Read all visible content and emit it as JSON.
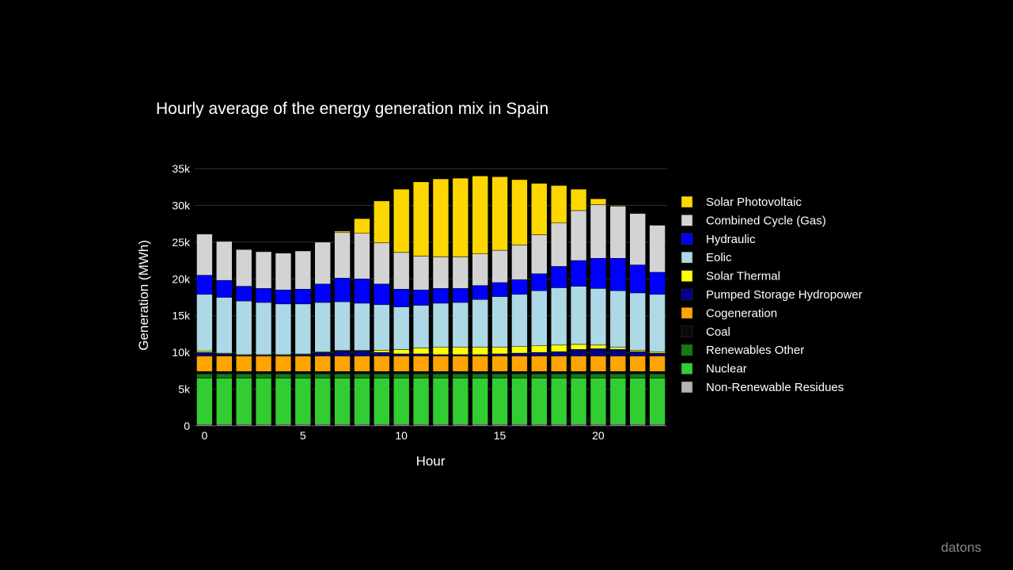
{
  "watermark": "datons",
  "chart_data": {
    "type": "bar",
    "stacked": true,
    "title": "Hourly average of the energy generation mix in Spain",
    "xlabel": "Hour",
    "ylabel": "Generation (MWh)",
    "xlim": [
      -0.5,
      23.5
    ],
    "ylim": [
      0,
      35000
    ],
    "x_tick_values": [
      0,
      5,
      10,
      15,
      20
    ],
    "x_tick_labels": [
      "0",
      "5",
      "10",
      "15",
      "20"
    ],
    "y_tick_values": [
      0,
      5000,
      10000,
      15000,
      20000,
      25000,
      30000,
      35000
    ],
    "y_tick_labels": [
      "0",
      "5k",
      "10k",
      "15k",
      "20k",
      "25k",
      "30k",
      "35k"
    ],
    "grid": true,
    "legend_position": "right",
    "x": [
      0,
      1,
      2,
      3,
      4,
      5,
      6,
      7,
      8,
      9,
      10,
      11,
      12,
      13,
      14,
      15,
      16,
      17,
      18,
      19,
      20,
      21,
      22,
      23
    ],
    "series": [
      {
        "name": "Non-Renewable Residues",
        "color": "#b4b4b4",
        "values": [
          200,
          200,
          200,
          200,
          200,
          200,
          200,
          200,
          200,
          200,
          200,
          200,
          200,
          200,
          200,
          200,
          200,
          200,
          200,
          200,
          200,
          200,
          200,
          200
        ]
      },
      {
        "name": "Nuclear",
        "color": "#32cd32",
        "values": [
          6300,
          6300,
          6300,
          6300,
          6300,
          6300,
          6300,
          6300,
          6300,
          6300,
          6300,
          6300,
          6300,
          6300,
          6300,
          6300,
          6300,
          6300,
          6300,
          6300,
          6300,
          6300,
          6300,
          6300
        ]
      },
      {
        "name": "Renewables Other",
        "color": "#137a13",
        "values": [
          600,
          600,
          600,
          600,
          600,
          600,
          600,
          600,
          600,
          600,
          600,
          600,
          600,
          600,
          600,
          600,
          600,
          600,
          600,
          600,
          600,
          600,
          600,
          600
        ]
      },
      {
        "name": "Coal",
        "color": "#0a0a0a",
        "values": [
          300,
          300,
          300,
          300,
          300,
          300,
          300,
          300,
          300,
          300,
          300,
          300,
          300,
          300,
          300,
          300,
          300,
          300,
          300,
          300,
          300,
          300,
          300,
          300
        ]
      },
      {
        "name": "Cogeneration",
        "color": "#ffa500",
        "values": [
          2100,
          2100,
          2100,
          2100,
          2100,
          2100,
          2100,
          2100,
          2100,
          2100,
          2100,
          2100,
          2100,
          2100,
          2100,
          2100,
          2100,
          2100,
          2100,
          2100,
          2100,
          2100,
          2100,
          2100
        ]
      },
      {
        "name": "Pumped Storage Hydropower",
        "color": "#00008b",
        "values": [
          500,
          300,
          100,
          100,
          100,
          200,
          500,
          700,
          700,
          500,
          300,
          300,
          200,
          200,
          200,
          300,
          400,
          500,
          600,
          900,
          1000,
          900,
          600,
          400
        ]
      },
      {
        "name": "Solar Thermal",
        "color": "#ffff00",
        "values": [
          200,
          100,
          100,
          100,
          100,
          100,
          100,
          100,
          100,
          300,
          600,
          800,
          1000,
          1000,
          1000,
          900,
          900,
          900,
          900,
          700,
          500,
          300,
          200,
          200
        ]
      },
      {
        "name": "Eolic",
        "color": "#add8e6",
        "values": [
          7700,
          7600,
          7300,
          7100,
          6900,
          6800,
          6700,
          6600,
          6400,
          6200,
          5800,
          5800,
          6000,
          6100,
          6500,
          6900,
          7100,
          7500,
          7800,
          7900,
          7700,
          7700,
          7800,
          7800
        ]
      },
      {
        "name": "Hydraulic",
        "color": "#0000ff",
        "values": [
          2600,
          2300,
          2000,
          1900,
          1900,
          2000,
          2500,
          3200,
          3300,
          2800,
          2400,
          2100,
          2000,
          1900,
          1900,
          1900,
          2000,
          2300,
          2900,
          3500,
          4100,
          4400,
          3800,
          3000
        ]
      },
      {
        "name": "Combined Cycle (Gas)",
        "color": "#d3d3d3",
        "values": [
          5600,
          5300,
          5000,
          5000,
          5000,
          5200,
          5700,
          6200,
          6200,
          5600,
          5000,
          4600,
          4300,
          4300,
          4300,
          4400,
          4700,
          5300,
          5900,
          6800,
          7300,
          7100,
          7000,
          6400
        ]
      },
      {
        "name": "Solar Photovoltaic",
        "color": "#ffd700",
        "values": [
          0,
          0,
          0,
          0,
          0,
          0,
          0,
          200,
          2000,
          5700,
          8600,
          10100,
          10600,
          10700,
          10600,
          10000,
          8900,
          7000,
          5100,
          2900,
          800,
          100,
          0,
          0
        ]
      }
    ],
    "legend_order": [
      "Solar Photovoltaic",
      "Combined Cycle (Gas)",
      "Hydraulic",
      "Eolic",
      "Solar Thermal",
      "Pumped Storage Hydropower",
      "Cogeneration",
      "Coal",
      "Renewables Other",
      "Nuclear",
      "Non-Renewable Residues"
    ]
  }
}
